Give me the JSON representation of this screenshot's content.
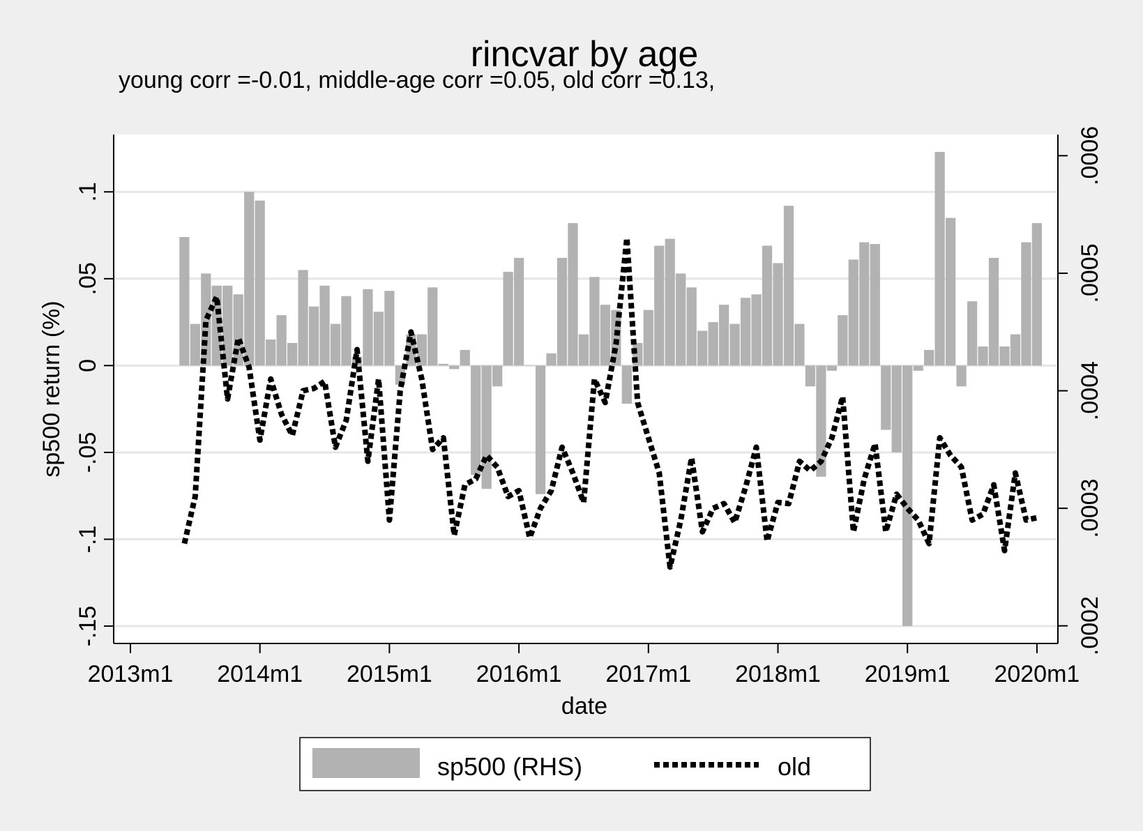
{
  "chart_data": {
    "type": "bar",
    "title": "rincvar by age",
    "subtitle": "young corr =-0.01, middle-age corr =0.05, old corr =0.13,",
    "xlabel": "date",
    "ylabel": "sp500 return (%)",
    "ylabel_right": "",
    "x_ticks": [
      "2013m1",
      "2014m1",
      "2015m1",
      "2016m1",
      "2017m1",
      "2018m1",
      "2019m1",
      "2020m1"
    ],
    "y_left_ticks": [
      "-.15",
      "-.1",
      "-.05",
      "0",
      ".05",
      ".1"
    ],
    "y_right_ticks": [
      ".0002",
      ".0003",
      ".0004",
      ".0005",
      ".0006"
    ],
    "ylim_left": [
      -0.16,
      0.133
    ],
    "ylim_right": [
      0.000185,
      0.000618
    ],
    "x_start_date": "2013m6",
    "grid": "horizontal (left axis)",
    "legend_position": "bottom",
    "colors": {
      "background": "#efefef",
      "plot_bg": "#ffffff",
      "bar": "#b2b2b2",
      "line": "#000000",
      "grid": "#e6e6e6"
    },
    "series": [
      {
        "name": "sp500 (RHS)",
        "axis": "left",
        "render": "bar",
        "values": [
          0.074,
          0.024,
          0.053,
          0.046,
          0.046,
          0.041,
          0.1,
          0.095,
          0.015,
          0.029,
          0.013,
          0.055,
          0.034,
          0.046,
          0.024,
          0.04,
          0.005,
          0.044,
          0.031,
          0.043,
          -0.011,
          0.018,
          0.018,
          0.045,
          0.001,
          -0.002,
          0.009,
          -0.063,
          -0.071,
          -0.012,
          0.054,
          0.062,
          0.0,
          -0.074,
          0.007,
          0.062,
          0.082,
          0.018,
          0.051,
          0.035,
          0.032,
          -0.022,
          0.013,
          0.032,
          0.069,
          0.073,
          0.053,
          0.045,
          0.02,
          0.025,
          0.035,
          0.024,
          0.039,
          0.041,
          0.069,
          0.059,
          0.092,
          0.024,
          -0.012,
          -0.064,
          -0.003,
          0.029,
          0.061,
          0.071,
          0.07,
          -0.037,
          -0.05,
          -0.15,
          -0.003,
          0.009,
          0.123,
          0.085,
          -0.012,
          0.037,
          0.011,
          0.062,
          0.011,
          0.018,
          0.071,
          0.082
        ]
      },
      {
        "name": "old",
        "axis": "right",
        "render": "dotted-line",
        "values": [
          0.00027,
          0.00031,
          0.00046,
          0.00048,
          0.000393,
          0.000445,
          0.00042,
          0.000358,
          0.00041,
          0.00038,
          0.000362,
          0.0004,
          0.000402,
          0.000408,
          0.000352,
          0.000375,
          0.000435,
          0.00034,
          0.00041,
          0.00029,
          0.0004,
          0.00045,
          0.00041,
          0.00035,
          0.00036,
          0.000277,
          0.00032,
          0.000325,
          0.000345,
          0.000335,
          0.00031,
          0.000315,
          0.000275,
          0.0003,
          0.000315,
          0.000352,
          0.00033,
          0.000305,
          0.00041,
          0.00039,
          0.00044,
          0.00053,
          0.00039,
          0.00036,
          0.00033,
          0.00025,
          0.00029,
          0.000343,
          0.00028,
          0.0003,
          0.000304,
          0.000288,
          0.000318,
          0.000352,
          0.000272,
          0.000305,
          0.000304,
          0.00034,
          0.000332,
          0.00034,
          0.00036,
          0.000395,
          0.00028,
          0.000325,
          0.000355,
          0.00028,
          0.000312,
          0.0003,
          0.00029,
          0.00027,
          0.00036,
          0.000345,
          0.000335,
          0.00029,
          0.000295,
          0.00032,
          0.000264,
          0.00033,
          0.00029,
          0.000292
        ]
      }
    ]
  }
}
